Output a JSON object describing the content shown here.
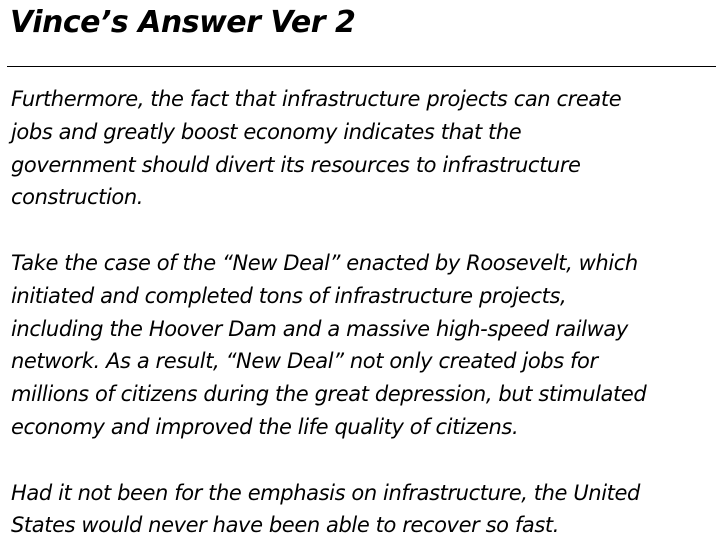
{
  "slide": {
    "title": "Vince’s Answer Ver 2",
    "paragraphs": [
      {
        "lines": [
          "Furthermore, the fact that infrastructure projects can create",
          "jobs and greatly boost economy indicates that the",
          "government should divert its resources to infrastructure",
          "construction."
        ]
      },
      {
        "lines": [
          "Take the case of the “New Deal” enacted by Roosevelt, which",
          "initiated and completed tons of infrastructure projects,",
          "including the Hoover Dam and a massive high-speed railway",
          "network. As a result, “New Deal” not only created jobs for",
          "millions of citizens during the great depression, but stimulated",
          "economy and improved the life quality of citizens."
        ]
      },
      {
        "lines": [
          "Had it not been for the emphasis on infrastructure, the United",
          "States would never have been able to recover so fast."
        ]
      }
    ]
  }
}
